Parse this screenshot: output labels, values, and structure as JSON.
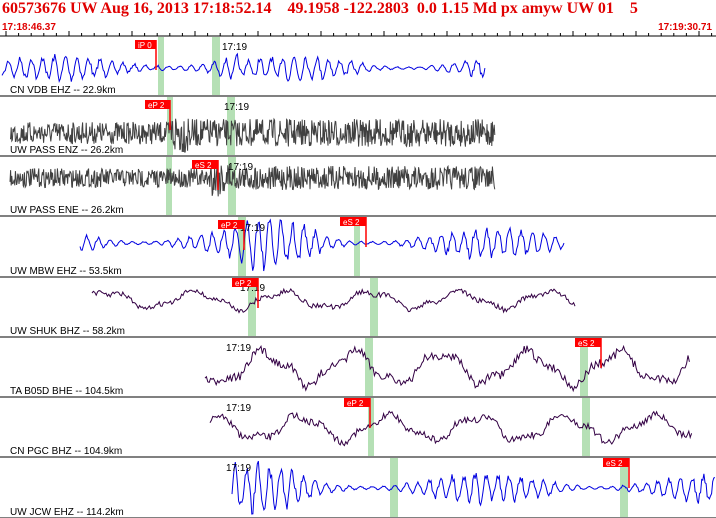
{
  "header": {
    "title": "60573676 UW Aug 16, 2013 17:18:52.14    49.1958 -122.2803  0.0 1.15 Md px amyw UW 01    5",
    "start_time": "17:18:46.37",
    "end_time": "17:19:30.71"
  },
  "minute_label": "17:19",
  "colors": {
    "header_red": "#e00000",
    "pick_red": "#ff0000",
    "window_green": "#b5e0b5",
    "blue": "#0000e0",
    "gray": "#404040",
    "purple": "#330044",
    "frame": "#000000"
  },
  "traces": [
    {
      "label": "CN VDB EHZ -- 22.9km",
      "color": "blue",
      "style": "blue",
      "picks": [
        "iP 0"
      ],
      "green_windows": 2
    },
    {
      "label": "UW PASS ENZ -- 26.2km",
      "color": "gray",
      "style": "dense",
      "picks": [
        "eP 2"
      ],
      "green_windows": 2
    },
    {
      "label": "UW PASS ENE -- 26.2km",
      "color": "gray",
      "style": "dense",
      "picks": [
        "eS 2"
      ],
      "green_windows": 2
    },
    {
      "label": "UW MBW EHZ -- 53.5km",
      "color": "blue",
      "style": "blue",
      "picks": [
        "eP 2",
        "eS 2"
      ],
      "green_windows": 2
    },
    {
      "label": "UW SHUK BHZ -- 58.2km",
      "color": "purple",
      "style": "slow",
      "picks": [
        "eP 2"
      ],
      "green_windows": 2
    },
    {
      "label": "TA B05D BHE -- 104.5km",
      "color": "purple",
      "style": "slow",
      "picks": [
        "eS 2"
      ],
      "green_windows": 2
    },
    {
      "label": "CN PGC BHZ -- 104.9km",
      "color": "purple",
      "style": "slow",
      "picks": [
        "eP 2"
      ],
      "green_windows": 2
    },
    {
      "label": "UW JCW EHZ -- 114.2km",
      "color": "blue",
      "style": "blue",
      "picks": [
        "eS 2"
      ],
      "green_windows": 2
    }
  ]
}
